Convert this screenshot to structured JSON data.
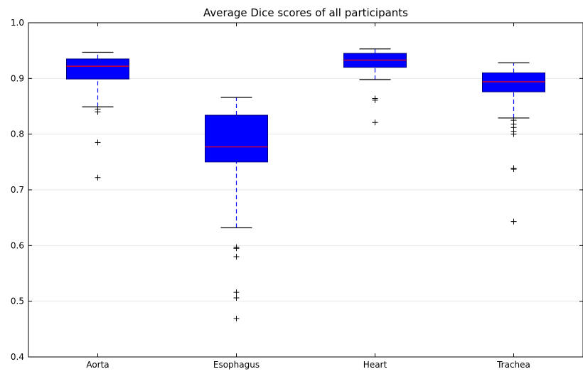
{
  "chart_data": {
    "type": "box",
    "title": "Average Dice scores of all participants",
    "xlabel": "",
    "ylabel": "",
    "ylim": [
      0.4,
      1.0
    ],
    "yticks": [
      "0.4",
      "0.5",
      "0.6",
      "0.7",
      "0.8",
      "0.9",
      "1.0"
    ],
    "grid": "horizontal",
    "categories": [
      "Aorta",
      "Esophagus",
      "Heart",
      "Trachea"
    ],
    "boxes": [
      {
        "category": "Aorta",
        "whisker_low": 0.849,
        "q1": 0.899,
        "median": 0.922,
        "q3": 0.935,
        "whisker_high": 0.947,
        "outliers": [
          0.845,
          0.84,
          0.785,
          0.722
        ]
      },
      {
        "category": "Esophagus",
        "whisker_low": 0.632,
        "q1": 0.75,
        "median": 0.777,
        "q3": 0.834,
        "whisker_high": 0.866,
        "outliers": [
          0.597,
          0.595,
          0.58,
          0.516,
          0.506,
          0.469
        ]
      },
      {
        "category": "Heart",
        "whisker_low": 0.898,
        "q1": 0.92,
        "median": 0.933,
        "q3": 0.945,
        "whisker_high": 0.953,
        "outliers": [
          0.864,
          0.861,
          0.821
        ]
      },
      {
        "category": "Trachea",
        "whisker_low": 0.829,
        "q1": 0.876,
        "median": 0.894,
        "q3": 0.91,
        "whisker_high": 0.928,
        "outliers": [
          0.825,
          0.818,
          0.812,
          0.805,
          0.8,
          0.739,
          0.737,
          0.643
        ]
      }
    ],
    "colors": {
      "box_fill": "#0000ff",
      "median": "#ff0000",
      "whisker": "#0000ff",
      "cap": "#000000",
      "outlier": "#000000",
      "grid": "#e6e6e6",
      "axis": "#000000"
    }
  }
}
